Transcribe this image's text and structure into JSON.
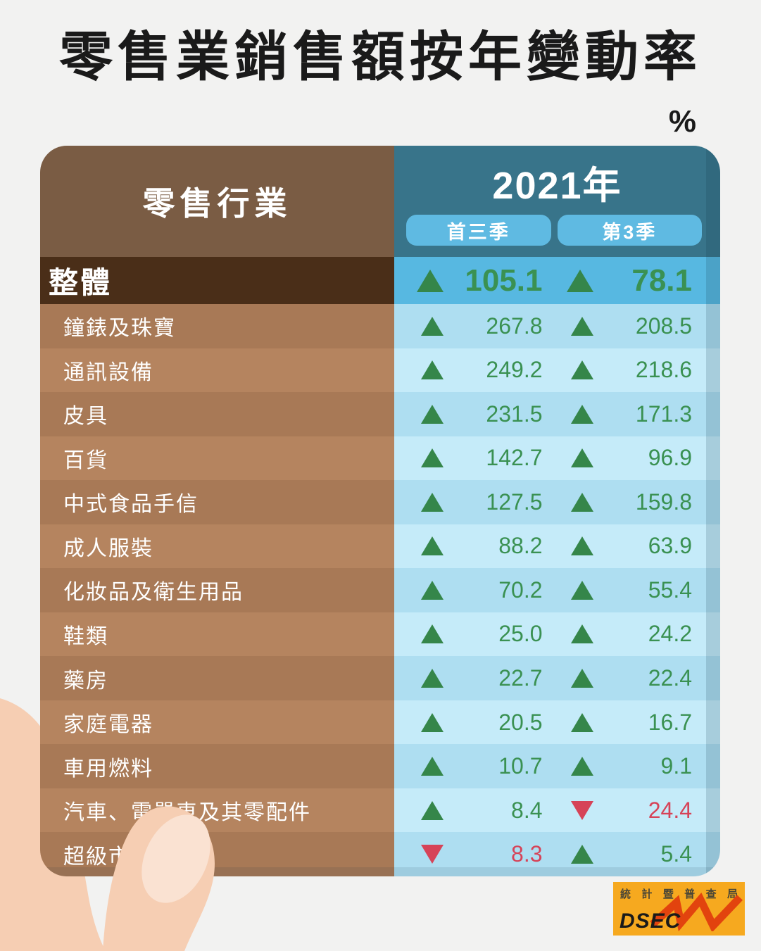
{
  "title": "零售業銷售額按年變動率",
  "unit_label": "%",
  "chart_data": {
    "type": "table",
    "title": "零售業銷售額按年變動率",
    "unit": "%",
    "row_header": "零售行業",
    "year": "2021年",
    "columns": [
      "首三季",
      "第3季"
    ],
    "total": {
      "label": "整體",
      "values": [
        105.1,
        78.1
      ]
    },
    "rows": [
      {
        "label": "鐘錶及珠寶",
        "values": [
          267.8,
          208.5
        ]
      },
      {
        "label": "通訊設備",
        "values": [
          249.2,
          218.6
        ]
      },
      {
        "label": "皮具",
        "values": [
          231.5,
          171.3
        ]
      },
      {
        "label": "百貨",
        "values": [
          142.7,
          96.9
        ]
      },
      {
        "label": "中式食品手信",
        "values": [
          127.5,
          159.8
        ]
      },
      {
        "label": "成人服裝",
        "values": [
          88.2,
          63.9
        ]
      },
      {
        "label": "化妝品及衛生用品",
        "values": [
          70.2,
          55.4
        ]
      },
      {
        "label": "鞋類",
        "values": [
          25.0,
          24.2
        ]
      },
      {
        "label": "藥房",
        "values": [
          22.7,
          22.4
        ]
      },
      {
        "label": "家庭電器",
        "values": [
          20.5,
          16.7
        ]
      },
      {
        "label": "車用燃料",
        "values": [
          10.7,
          9.1
        ]
      },
      {
        "label": "汽車、電單車及其零配件",
        "values": [
          8.4,
          -24.4
        ]
      },
      {
        "label": "超級市場",
        "values": [
          -8.3,
          5.4
        ]
      }
    ],
    "legend": "positive values shown with green up triangle, negative with red down triangle"
  },
  "logo": {
    "agency": "統計暨普查局",
    "abbr": "DSEC"
  },
  "colors": {
    "bg": "#F2F2F1",
    "ink": "#1A1A1A",
    "header_brown": "#7A5C44",
    "header_teal": "#38748A",
    "pill_blue": "#5FBAE2",
    "total_brown": "#4A2E18",
    "total_blue": "#57B8E1",
    "row_brown_a": "#A87956",
    "row_brown_b": "#B5845F",
    "row_blue_a": "#AEDEF1",
    "row_blue_b": "#C5EBF9",
    "green": "#35864A",
    "green_text": "#3A9152",
    "red": "#D64358",
    "skin": "#F6CEB3",
    "skin_hl": "#FAE2D2",
    "logo_orange": "#F6A91F",
    "logo_red": "#E2430E"
  }
}
